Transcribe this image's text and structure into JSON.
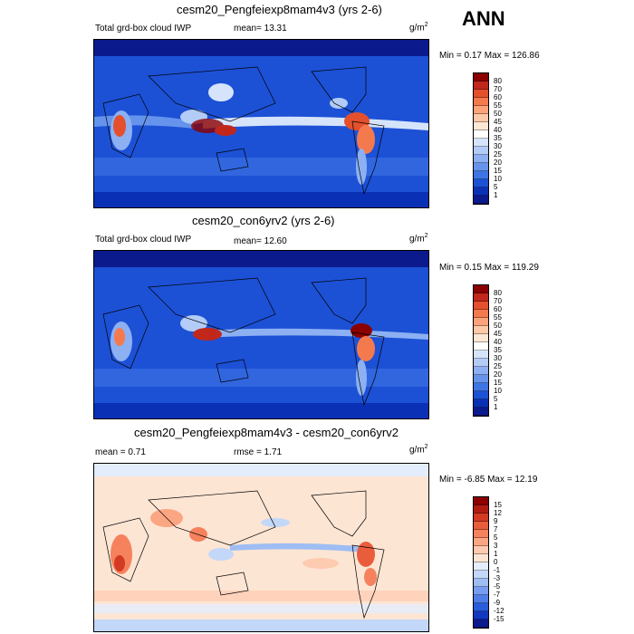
{
  "season": "ANN",
  "panels": [
    {
      "title": "cesm20_Pengfeiexp8mam4v3 (yrs 2-6)",
      "left_label": "Total grd-box cloud IWP",
      "mean_text": "mean=  13.31",
      "units": "g/m",
      "units_sup": "2",
      "minmax_text": "Min =   0.17 Max = 126.86",
      "levels": [
        "80",
        "70",
        "60",
        "55",
        "50",
        "45",
        "40",
        "35",
        "30",
        "25",
        "20",
        "15",
        "10",
        "5",
        "1"
      ],
      "colors": [
        "#8b0000",
        "#c1271b",
        "#e4502d",
        "#f47a4e",
        "#fba37c",
        "#fdcaa9",
        "#fde8d6",
        "#ffffff",
        "#d6e4fb",
        "#b3ccf7",
        "#8cb0f2",
        "#6694ec",
        "#3f74e4",
        "#1c51d6",
        "#0a31b5",
        "#0b1a8c"
      ]
    },
    {
      "title": "cesm20_con6yrv2 (yrs 2-6)",
      "left_label": "Total grd-box cloud IWP",
      "mean_text": "mean=  12.60",
      "units": "g/m",
      "units_sup": "2",
      "minmax_text": "Min =   0.15 Max = 119.29",
      "levels": [
        "80",
        "70",
        "60",
        "55",
        "50",
        "45",
        "40",
        "35",
        "30",
        "25",
        "20",
        "15",
        "10",
        "5",
        "1"
      ],
      "colors": [
        "#8b0000",
        "#c1271b",
        "#e4502d",
        "#f47a4e",
        "#fba37c",
        "#fdcaa9",
        "#fde8d6",
        "#ffffff",
        "#d6e4fb",
        "#b3ccf7",
        "#8cb0f2",
        "#6694ec",
        "#3f74e4",
        "#1c51d6",
        "#0a31b5",
        "#0b1a8c"
      ]
    },
    {
      "title": "cesm20_Pengfeiexp8mam4v3 - cesm20_con6yrv2",
      "left_label": "mean =   0.71",
      "mean_text": "rmse =   1.71",
      "units": "g/m",
      "units_sup": "2",
      "minmax_text": "Min =  -6.85 Max =  12.19",
      "levels": [
        "15",
        "12",
        "9",
        "7",
        "5",
        "3",
        "1",
        "0",
        "-1",
        "-3",
        "-5",
        "-7",
        "-9",
        "-12",
        "-15"
      ],
      "colors": [
        "#8b0000",
        "#b11c12",
        "#d23a24",
        "#ea5d3c",
        "#f5825d",
        "#fba683",
        "#fdcbb0",
        "#fde5d4",
        "#e3edfc",
        "#c3d7f8",
        "#9ebdf3",
        "#769df0",
        "#4f7ee8",
        "#2a5cdc",
        "#1238c0",
        "#0b1a8c"
      ]
    }
  ]
}
